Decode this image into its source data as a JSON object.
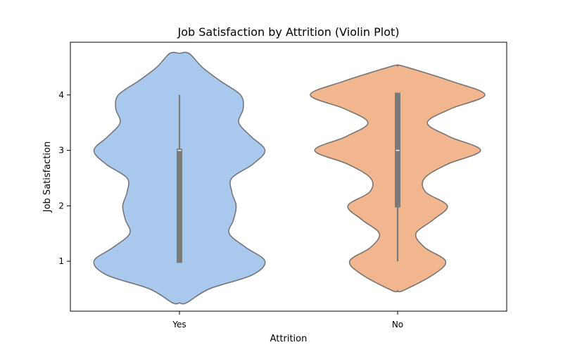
{
  "chart_data": {
    "type": "violin",
    "title": "Job Satisfaction by Attrition (Violin Plot)",
    "xlabel": "Attrition",
    "ylabel": "Job Satisfaction",
    "categories": [
      "Yes",
      "No"
    ],
    "ylim": [
      0.1,
      4.95
    ],
    "yticks": [
      1,
      2,
      3,
      4
    ],
    "grid": false,
    "colors": {
      "Yes": "#a9c8ee",
      "No": "#f2b68f",
      "outline": "#707070",
      "box": "#7a7a7a",
      "median": "#ffffff"
    },
    "violins": [
      {
        "category": "Yes",
        "box": {
          "q1": 0.97,
          "median": 3.0,
          "q3": 3.03,
          "whisker_low": 0.97,
          "whisker_high": 4.0
        },
        "density": {
          "y": [
            0.25,
            0.5,
            0.75,
            1.0,
            1.25,
            1.5,
            1.75,
            2.0,
            2.25,
            2.5,
            2.75,
            3.0,
            3.25,
            3.5,
            3.75,
            4.0,
            4.25,
            4.5,
            4.75
          ],
          "width": [
            0.08,
            0.34,
            0.83,
            0.98,
            0.76,
            0.57,
            0.62,
            0.65,
            0.6,
            0.6,
            0.84,
            0.98,
            0.82,
            0.68,
            0.73,
            0.7,
            0.47,
            0.26,
            0.11
          ]
        }
      },
      {
        "category": "No",
        "box": {
          "q1": 1.97,
          "median": 3.0,
          "q3": 4.04,
          "whisker_low": 1.0,
          "whisker_high": 4.04
        },
        "density": {
          "y": [
            0.47,
            0.75,
            1.0,
            1.25,
            1.5,
            1.75,
            2.0,
            2.25,
            2.5,
            2.75,
            3.0,
            3.25,
            3.5,
            3.75,
            4.0,
            4.25,
            4.52
          ],
          "width": [
            0.06,
            0.4,
            0.55,
            0.31,
            0.21,
            0.41,
            0.57,
            0.32,
            0.31,
            0.57,
            0.95,
            0.59,
            0.34,
            0.61,
            1.0,
            0.61,
            0.06
          ]
        }
      }
    ]
  }
}
